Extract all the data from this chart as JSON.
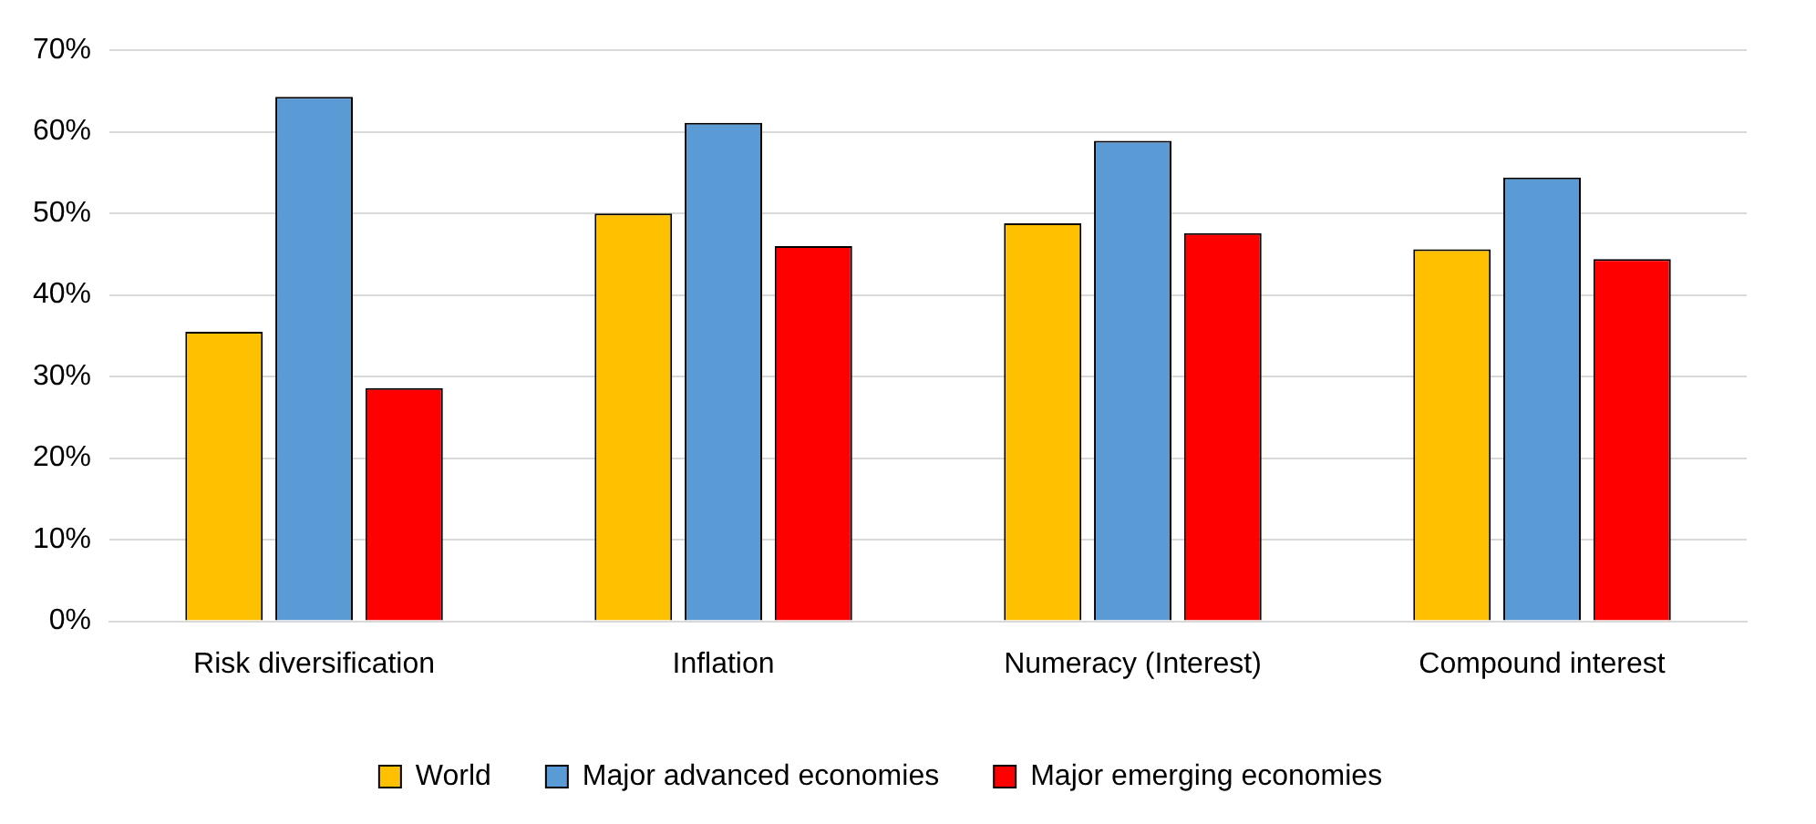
{
  "chart_data": {
    "type": "bar",
    "categories": [
      "Risk diversification",
      "Inflation",
      "Numeracy (Interest)",
      "Compound interest"
    ],
    "series": [
      {
        "name": "World",
        "color": "#ffc000",
        "values": [
          35.5,
          50.0,
          48.8,
          45.6
        ]
      },
      {
        "name": "Major advanced economies",
        "color": "#5b9bd5",
        "values": [
          64.3,
          61.1,
          58.9,
          54.4
        ]
      },
      {
        "name": "Major emerging economies",
        "color": "#ff0000",
        "values": [
          28.6,
          46.0,
          47.6,
          44.4
        ]
      }
    ],
    "ylim": [
      0,
      70
    ],
    "yticks": [
      {
        "value": 0,
        "label": "0%"
      },
      {
        "value": 10,
        "label": "10%"
      },
      {
        "value": 20,
        "label": "20%"
      },
      {
        "value": 30,
        "label": "30%"
      },
      {
        "value": 40,
        "label": "40%"
      },
      {
        "value": 50,
        "label": "50%"
      },
      {
        "value": 60,
        "label": "60%"
      },
      {
        "value": 70,
        "label": "70%"
      }
    ],
    "grid": "y",
    "legend": "bottom"
  }
}
